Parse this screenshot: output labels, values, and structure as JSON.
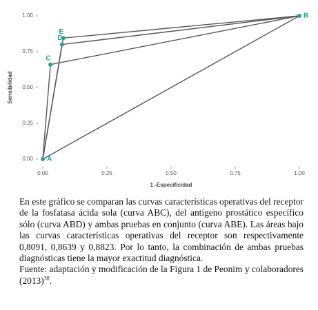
{
  "chart_data": {
    "type": "line",
    "x_label": "1 -Especificidad",
    "y_label": "Sensibilidad",
    "xlim": [
      0,
      1
    ],
    "ylim": [
      0,
      1
    ],
    "xticks": [
      {
        "value": 0,
        "label": "0.00"
      },
      {
        "value": 0.25,
        "label": "0.25"
      },
      {
        "value": 0.5,
        "label": "0.50"
      },
      {
        "value": 0.75,
        "label": "0.75"
      },
      {
        "value": 1,
        "label": "1.00"
      }
    ],
    "yticks": [
      {
        "value": 0,
        "label": "0.00"
      },
      {
        "value": 0.25,
        "label": "0.25"
      },
      {
        "value": 0.5,
        "label": "0.50"
      },
      {
        "value": 0.75,
        "label": "0.75"
      },
      {
        "value": 1,
        "label": "1.00"
      }
    ],
    "series": [
      {
        "color": "#555555",
        "x": [
          0,
          1
        ],
        "values": [
          0,
          1
        ]
      },
      {
        "color": "#555555",
        "x": [
          0,
          0.03,
          1
        ],
        "values": [
          0,
          0.66,
          1
        ]
      },
      {
        "color": "#555555",
        "x": [
          0,
          0.075,
          1
        ],
        "values": [
          0,
          0.8,
          1
        ]
      },
      {
        "color": "#555555",
        "x": [
          0,
          0.08,
          1
        ],
        "values": [
          0,
          0.845,
          1
        ]
      }
    ],
    "points": {
      "color": "#2a9d8f",
      "labels": [
        "A",
        "B",
        "C",
        "D",
        "E"
      ],
      "x": [
        0,
        1,
        0.03,
        0.075,
        0.08
      ],
      "values": [
        0,
        1,
        0.66,
        0.8,
        0.845
      ]
    }
  },
  "caption": {
    "text": "En este gráfico se comparan las curvas características operativas del receptor de la fosfatasa ácida sola (curva ABC), del antígeno prostático específico sólo (curva ABD) y ambas pruebas en conjunto (curva ABE). Las áreas bajo las curvas características operativas del receptor son respectivamente 0,8091, 0,8639 y 0,8823. Por lo tanto, la combinación de ambas pruebas diagnósticas tiene la mayor exactitud diagnóstica.",
    "source": "Fuente: adaptación y modificación de la Figura 1 de Peonim y colaboradores (2013)",
    "source_sup": "38",
    "source_end": "."
  }
}
